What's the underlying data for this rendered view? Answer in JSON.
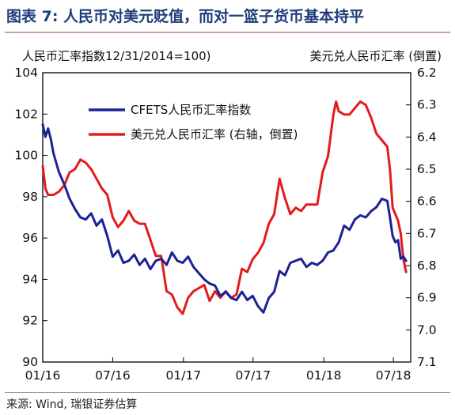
{
  "title": "图表 7: 人民币对美元贬值，而对一篮子货币基本持平",
  "source": "来源: Wind, 瑞银证券估算",
  "colors": {
    "cfets": "#1b2296",
    "usdcny": "#e31b1b",
    "title": "#1f3d7a"
  },
  "chart_data": {
    "type": "line",
    "left_axis_title": "人民币汇率指数12/31/2014=100)",
    "right_axis_title": "美元兑人民币汇率 (倒置)",
    "x_range": [
      "2016-01-01",
      "2018-08-15"
    ],
    "x_ticks": [
      {
        "date": "2016-01-01",
        "label": "01/16"
      },
      {
        "date": "2016-07-01",
        "label": "07/16"
      },
      {
        "date": "2017-01-01",
        "label": "01/17"
      },
      {
        "date": "2017-07-01",
        "label": "07/17"
      },
      {
        "date": "2018-01-01",
        "label": "01/18"
      },
      {
        "date": "2018-07-01",
        "label": "07/18"
      }
    ],
    "left_axis": {
      "min": 90,
      "max": 104,
      "ticks": [
        90,
        92,
        94,
        96,
        98,
        100,
        102,
        104
      ]
    },
    "right_axis": {
      "min": 6.2,
      "max": 7.1,
      "inverted": true,
      "ticks": [
        "6.2",
        "6.3",
        "6.4",
        "6.5",
        "6.6",
        "6.7",
        "6.8",
        "6.9",
        "7.0",
        "7.1"
      ]
    },
    "legend_position": "top-left",
    "grid": false,
    "series": [
      {
        "name": "CFETS人民币汇率指数",
        "axis": "left",
        "color": "#1b2296",
        "points": [
          [
            "2016-01-01",
            101.5
          ],
          [
            "2016-01-08",
            100.9
          ],
          [
            "2016-01-15",
            101.3
          ],
          [
            "2016-01-22",
            100.8
          ],
          [
            "2016-01-29",
            100.1
          ],
          [
            "2016-02-12",
            99.2
          ],
          [
            "2016-02-26",
            98.6
          ],
          [
            "2016-03-11",
            97.9
          ],
          [
            "2016-03-25",
            97.4
          ],
          [
            "2016-04-08",
            97.0
          ],
          [
            "2016-04-22",
            96.9
          ],
          [
            "2016-05-06",
            97.2
          ],
          [
            "2016-05-20",
            96.6
          ],
          [
            "2016-06-03",
            96.9
          ],
          [
            "2016-06-17",
            96.1
          ],
          [
            "2016-07-01",
            95.1
          ],
          [
            "2016-07-15",
            95.4
          ],
          [
            "2016-07-29",
            94.8
          ],
          [
            "2016-08-12",
            94.9
          ],
          [
            "2016-08-26",
            95.2
          ],
          [
            "2016-09-09",
            94.7
          ],
          [
            "2016-09-23",
            95.0
          ],
          [
            "2016-10-07",
            94.5
          ],
          [
            "2016-10-21",
            94.9
          ],
          [
            "2016-11-04",
            95.0
          ],
          [
            "2016-11-18",
            94.7
          ],
          [
            "2016-12-02",
            95.3
          ],
          [
            "2016-12-16",
            94.9
          ],
          [
            "2016-12-30",
            94.8
          ],
          [
            "2017-01-13",
            95.1
          ],
          [
            "2017-01-27",
            94.6
          ],
          [
            "2017-02-10",
            94.3
          ],
          [
            "2017-02-24",
            94.0
          ],
          [
            "2017-03-10",
            93.8
          ],
          [
            "2017-03-24",
            93.7
          ],
          [
            "2017-04-07",
            93.2
          ],
          [
            "2017-04-21",
            93.4
          ],
          [
            "2017-05-05",
            93.1
          ],
          [
            "2017-05-19",
            93.0
          ],
          [
            "2017-06-02",
            93.4
          ],
          [
            "2017-06-16",
            93.0
          ],
          [
            "2017-06-30",
            93.2
          ],
          [
            "2017-07-14",
            92.7
          ],
          [
            "2017-07-28",
            92.4
          ],
          [
            "2017-08-11",
            93.1
          ],
          [
            "2017-08-25",
            93.4
          ],
          [
            "2017-09-08",
            94.4
          ],
          [
            "2017-09-22",
            94.2
          ],
          [
            "2017-10-06",
            94.8
          ],
          [
            "2017-10-20",
            94.9
          ],
          [
            "2017-11-03",
            95.0
          ],
          [
            "2017-11-17",
            94.6
          ],
          [
            "2017-12-01",
            94.8
          ],
          [
            "2017-12-15",
            94.7
          ],
          [
            "2017-12-29",
            94.9
          ],
          [
            "2018-01-12",
            95.3
          ],
          [
            "2018-01-26",
            95.4
          ],
          [
            "2018-02-09",
            95.8
          ],
          [
            "2018-02-23",
            96.6
          ],
          [
            "2018-03-09",
            96.4
          ],
          [
            "2018-03-23",
            96.9
          ],
          [
            "2018-04-06",
            97.1
          ],
          [
            "2018-04-20",
            97.0
          ],
          [
            "2018-05-04",
            97.3
          ],
          [
            "2018-05-18",
            97.5
          ],
          [
            "2018-06-01",
            97.9
          ],
          [
            "2018-06-15",
            97.8
          ],
          [
            "2018-06-22",
            97.0
          ],
          [
            "2018-06-29",
            96.1
          ],
          [
            "2018-07-06",
            95.8
          ],
          [
            "2018-07-13",
            95.9
          ],
          [
            "2018-07-20",
            95.0
          ],
          [
            "2018-07-27",
            95.1
          ],
          [
            "2018-08-03",
            94.9
          ]
        ]
      },
      {
        "name": "美元兑人民币汇率 (右轴，倒置)",
        "axis": "right",
        "color": "#e31b1b",
        "points": [
          [
            "2016-01-01",
            6.49
          ],
          [
            "2016-01-08",
            6.56
          ],
          [
            "2016-01-15",
            6.58
          ],
          [
            "2016-01-29",
            6.58
          ],
          [
            "2016-02-12",
            6.57
          ],
          [
            "2016-02-26",
            6.55
          ],
          [
            "2016-03-11",
            6.51
          ],
          [
            "2016-03-25",
            6.5
          ],
          [
            "2016-04-08",
            6.47
          ],
          [
            "2016-04-22",
            6.48
          ],
          [
            "2016-05-06",
            6.5
          ],
          [
            "2016-05-20",
            6.53
          ],
          [
            "2016-06-03",
            6.56
          ],
          [
            "2016-06-17",
            6.58
          ],
          [
            "2016-07-01",
            6.65
          ],
          [
            "2016-07-15",
            6.68
          ],
          [
            "2016-07-29",
            6.66
          ],
          [
            "2016-08-12",
            6.63
          ],
          [
            "2016-08-26",
            6.66
          ],
          [
            "2016-09-09",
            6.67
          ],
          [
            "2016-09-23",
            6.67
          ],
          [
            "2016-10-07",
            6.72
          ],
          [
            "2016-10-21",
            6.77
          ],
          [
            "2016-11-04",
            6.77
          ],
          [
            "2016-11-18",
            6.88
          ],
          [
            "2016-12-02",
            6.89
          ],
          [
            "2016-12-16",
            6.93
          ],
          [
            "2016-12-30",
            6.95
          ],
          [
            "2017-01-13",
            6.9
          ],
          [
            "2017-01-27",
            6.88
          ],
          [
            "2017-02-10",
            6.87
          ],
          [
            "2017-02-24",
            6.86
          ],
          [
            "2017-03-10",
            6.91
          ],
          [
            "2017-03-24",
            6.88
          ],
          [
            "2017-04-07",
            6.9
          ],
          [
            "2017-04-21",
            6.88
          ],
          [
            "2017-05-05",
            6.9
          ],
          [
            "2017-05-19",
            6.89
          ],
          [
            "2017-06-02",
            6.81
          ],
          [
            "2017-06-16",
            6.82
          ],
          [
            "2017-06-30",
            6.78
          ],
          [
            "2017-07-14",
            6.76
          ],
          [
            "2017-07-28",
            6.73
          ],
          [
            "2017-08-11",
            6.67
          ],
          [
            "2017-08-25",
            6.64
          ],
          [
            "2017-09-08",
            6.53
          ],
          [
            "2017-09-22",
            6.59
          ],
          [
            "2017-10-06",
            6.64
          ],
          [
            "2017-10-20",
            6.62
          ],
          [
            "2017-11-03",
            6.63
          ],
          [
            "2017-11-17",
            6.61
          ],
          [
            "2017-12-01",
            6.61
          ],
          [
            "2017-12-15",
            6.61
          ],
          [
            "2017-12-29",
            6.51
          ],
          [
            "2018-01-12",
            6.46
          ],
          [
            "2018-01-26",
            6.33
          ],
          [
            "2018-02-02",
            6.29
          ],
          [
            "2018-02-09",
            6.32
          ],
          [
            "2018-02-23",
            6.33
          ],
          [
            "2018-03-09",
            6.33
          ],
          [
            "2018-03-23",
            6.31
          ],
          [
            "2018-04-06",
            6.29
          ],
          [
            "2018-04-20",
            6.3
          ],
          [
            "2018-05-04",
            6.34
          ],
          [
            "2018-05-18",
            6.39
          ],
          [
            "2018-06-01",
            6.41
          ],
          [
            "2018-06-15",
            6.43
          ],
          [
            "2018-06-22",
            6.5
          ],
          [
            "2018-06-29",
            6.62
          ],
          [
            "2018-07-06",
            6.64
          ],
          [
            "2018-07-13",
            6.66
          ],
          [
            "2018-07-20",
            6.7
          ],
          [
            "2018-07-27",
            6.78
          ],
          [
            "2018-08-03",
            6.82
          ]
        ]
      }
    ]
  }
}
